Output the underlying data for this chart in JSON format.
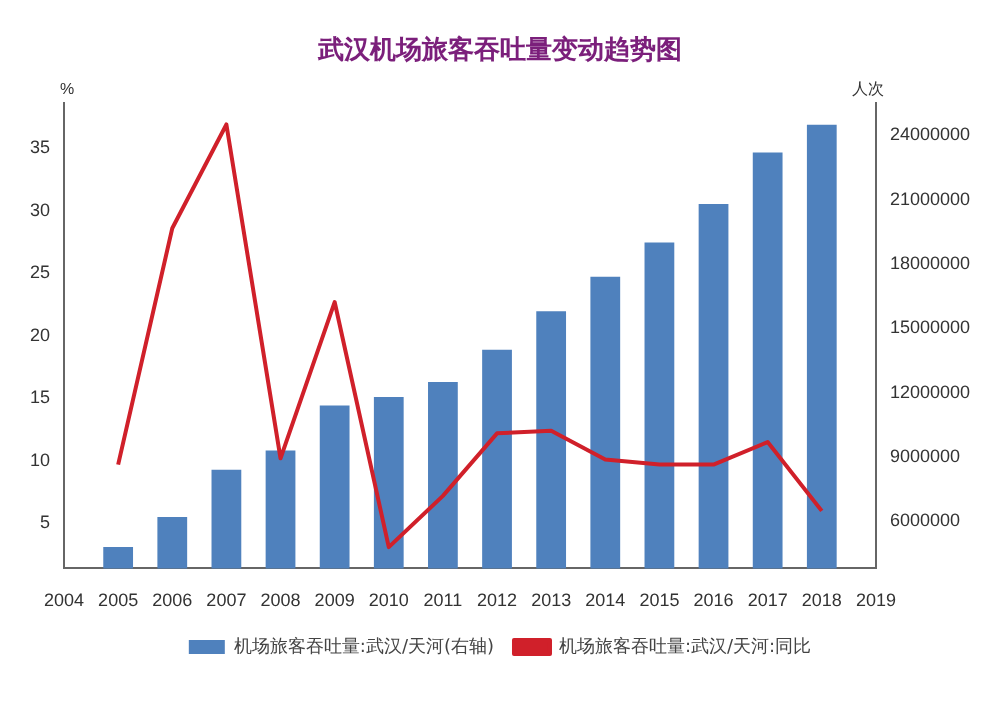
{
  "chart_data": {
    "type": "bar",
    "title": "武汉机场旅客吞吐量变动趋势图",
    "ylabel": "%",
    "y2label": "人次",
    "categories": [
      "2004",
      "2005",
      "2006",
      "2007",
      "2008",
      "2009",
      "2010",
      "2011",
      "2012",
      "2013",
      "2014",
      "2015",
      "2016",
      "2017",
      "2018",
      "2019"
    ],
    "series": [
      {
        "name": "机场旅客吞吐量:武汉/天河(右轴)",
        "axis": "y2",
        "color": "#4f81bd",
        "values": [
          null,
          4800000,
          6200000,
          8400000,
          9300000,
          11400000,
          11800000,
          12500000,
          14000000,
          15800000,
          17400000,
          19000000,
          20800000,
          23200000,
          24500000,
          null
        ]
      },
      {
        "name": "机场旅客吞吐量:武汉/天河:同比",
        "type": "line",
        "axis": "y",
        "color": "#d0202a",
        "values": [
          null,
          9.7,
          28.6,
          36.9,
          10.2,
          22.7,
          3.1,
          7.2,
          12.2,
          12.4,
          10.1,
          9.7,
          9.7,
          11.5,
          6.0,
          null
        ]
      }
    ],
    "ylim": [
      1.4,
      38.6
    ],
    "yticks": [
      5,
      10,
      15,
      20,
      25,
      30,
      35
    ],
    "y2lim": [
      3800000,
      25500000
    ],
    "y2ticks": [
      6000000,
      9000000,
      12000000,
      15000000,
      18000000,
      21000000,
      24000000
    ],
    "grid": false,
    "legend": "bottom",
    "marker": "none",
    "line_style": "solid"
  }
}
